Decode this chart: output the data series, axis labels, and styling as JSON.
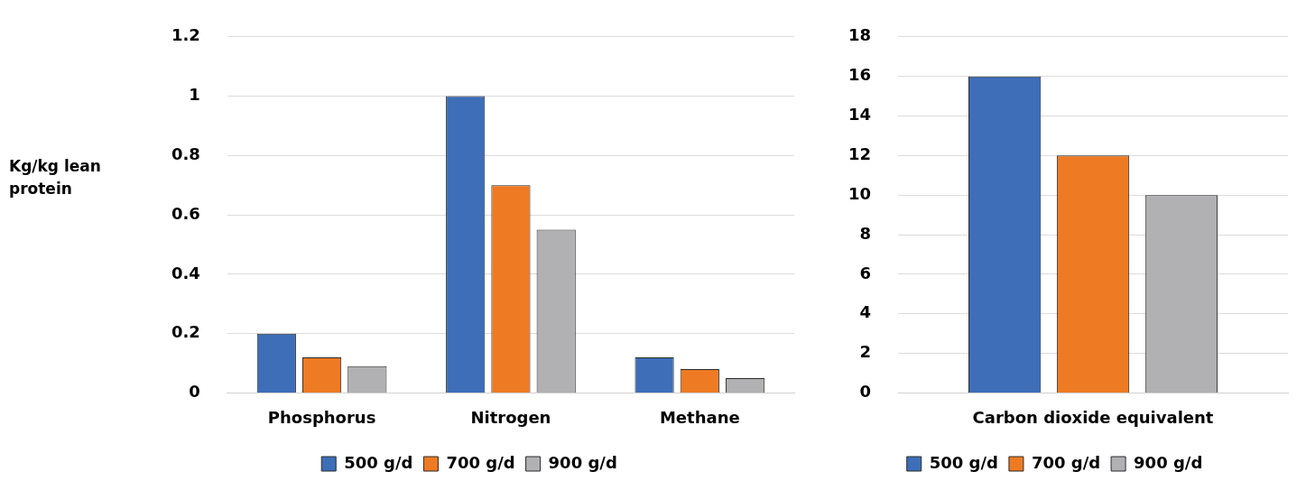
{
  "chart_data": [
    {
      "type": "bar",
      "ylabel": "Kg/kg lean protein",
      "categories": [
        "Phosphorus",
        "Nitrogen",
        "Methane"
      ],
      "series": [
        {
          "name": "500 g/d",
          "color": "#3d6eb7",
          "values": [
            0.2,
            1,
            0.12
          ]
        },
        {
          "name": "700 g/d",
          "color": "#ee7b23",
          "values": [
            0.12,
            0.7,
            0.08
          ]
        },
        {
          "name": "900 g/d",
          "color": "#b1b1b3",
          "values": [
            0.09,
            0.55,
            0.05
          ]
        }
      ],
      "ylim": [
        0,
        1.2
      ],
      "yticks": [
        0,
        0.2,
        0.4,
        0.6,
        0.8,
        1,
        1.2
      ],
      "grid": "y",
      "legend": "bottom"
    },
    {
      "type": "bar",
      "categories": [
        "Carbon dioxide equivalent"
      ],
      "series": [
        {
          "name": "500 g/d",
          "color": "#3d6eb7",
          "values": [
            16
          ]
        },
        {
          "name": "700 g/d",
          "color": "#ee7b23",
          "values": [
            12
          ]
        },
        {
          "name": "900 g/d",
          "color": "#b1b1b3",
          "values": [
            10
          ]
        }
      ],
      "ylim": [
        0,
        18
      ],
      "yticks": [
        0,
        2,
        4,
        6,
        8,
        10,
        12,
        14,
        16,
        18
      ],
      "grid": "y",
      "legend": "bottom"
    }
  ]
}
